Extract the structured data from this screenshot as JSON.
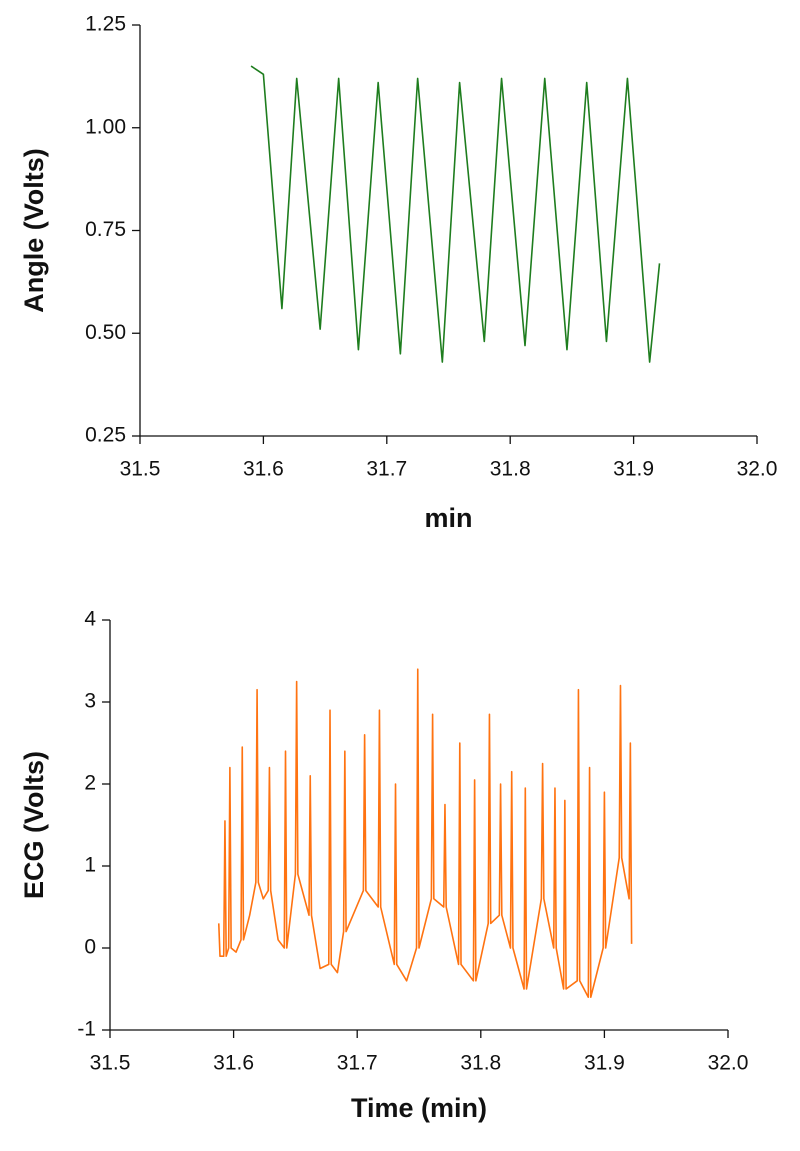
{
  "chart_data": [
    {
      "type": "line",
      "ylabel": "Angle (Volts)",
      "xlabel": "min",
      "color": "#1e7d1e",
      "x": [
        31.59,
        31.595,
        31.6,
        31.615,
        31.627,
        31.646,
        31.661,
        31.677,
        31.693,
        31.711,
        31.725,
        31.745,
        31.759,
        31.779,
        31.793,
        31.812,
        31.828,
        31.846,
        31.862,
        31.878,
        31.895,
        31.913,
        31.921
      ],
      "values": [
        1.15,
        1.14,
        1.13,
        0.56,
        1.12,
        0.51,
        1.12,
        0.46,
        1.11,
        0.45,
        1.12,
        0.43,
        1.11,
        0.48,
        1.12,
        0.47,
        1.12,
        0.46,
        1.11,
        0.48,
        1.12,
        0.43,
        0.67
      ],
      "xlim": [
        31.5,
        32.0
      ],
      "xticks": [
        31.5,
        31.6,
        31.7,
        31.8,
        31.9,
        {
          "value": 32.0,
          "label": "32.0"
        }
      ],
      "ylim": [
        0.25,
        1.25
      ],
      "yticks": [
        0.25,
        {
          "value": 0.5,
          "label": "0.50"
        },
        0.75,
        {
          "value": 1.0,
          "label": "1.00"
        },
        1.25
      ]
    },
    {
      "type": "line",
      "ylabel": "ECG (Volts)",
      "xlabel": "Time (min)",
      "color": "#ff7311",
      "x": [
        31.588,
        31.589,
        31.592,
        31.593,
        31.594,
        31.596,
        31.597,
        31.598,
        31.602,
        31.606,
        31.607,
        31.608,
        31.613,
        31.618,
        31.619,
        31.62,
        31.624,
        31.628,
        31.629,
        31.63,
        31.636,
        31.641,
        31.642,
        31.643,
        31.65,
        31.651,
        31.652,
        31.661,
        31.662,
        31.663,
        31.67,
        31.677,
        31.678,
        31.679,
        31.684,
        31.689,
        31.69,
        31.691,
        31.705,
        31.706,
        31.707,
        31.717,
        31.718,
        31.719,
        31.73,
        31.731,
        31.732,
        31.74,
        31.748,
        31.749,
        31.75,
        31.76,
        31.761,
        31.762,
        31.77,
        31.771,
        31.772,
        31.782,
        31.783,
        31.784,
        31.794,
        31.795,
        31.796,
        31.806,
        31.807,
        31.808,
        31.815,
        31.816,
        31.817,
        31.824,
        31.825,
        31.826,
        31.835,
        31.836,
        31.837,
        31.849,
        31.85,
        31.851,
        31.859,
        31.86,
        31.861,
        31.867,
        31.868,
        31.869,
        31.878,
        31.879,
        31.88,
        31.887,
        31.888,
        31.889,
        31.899,
        31.9,
        31.901,
        31.912,
        31.913,
        31.914,
        31.92,
        31.921,
        31.922
      ],
      "values": [
        0.3,
        -0.1,
        -0.1,
        1.55,
        -0.1,
        0.0,
        2.2,
        0.0,
        -0.05,
        0.1,
        2.45,
        0.1,
        0.4,
        0.8,
        3.15,
        0.8,
        0.6,
        0.7,
        2.2,
        0.7,
        0.1,
        0.0,
        2.4,
        0.0,
        0.9,
        3.25,
        0.9,
        0.4,
        2.1,
        0.4,
        -0.25,
        -0.2,
        2.9,
        -0.2,
        -0.3,
        0.2,
        2.4,
        0.2,
        0.7,
        2.6,
        0.7,
        0.5,
        2.9,
        0.5,
        -0.2,
        2.0,
        -0.2,
        -0.4,
        0.0,
        3.4,
        0.0,
        0.6,
        2.85,
        0.6,
        0.5,
        1.75,
        0.5,
        -0.2,
        2.5,
        -0.2,
        -0.4,
        2.05,
        -0.4,
        0.3,
        2.85,
        0.3,
        0.4,
        2.0,
        0.4,
        0.0,
        2.15,
        0.0,
        -0.5,
        1.95,
        -0.5,
        0.6,
        2.25,
        0.6,
        0.0,
        1.95,
        0.0,
        -0.5,
        1.8,
        -0.5,
        -0.4,
        3.15,
        -0.4,
        -0.6,
        2.2,
        -0.6,
        0.0,
        1.9,
        0.0,
        1.1,
        3.2,
        1.1,
        0.6,
        2.5,
        0.05
      ],
      "xlim": [
        31.5,
        32.0
      ],
      "xticks": [
        31.5,
        31.6,
        31.7,
        31.8,
        31.9,
        {
          "value": 32.0,
          "label": "32.0"
        }
      ],
      "ylim": [
        -1,
        4
      ],
      "yticks": [
        -1,
        0,
        1,
        2,
        3,
        4
      ]
    }
  ]
}
